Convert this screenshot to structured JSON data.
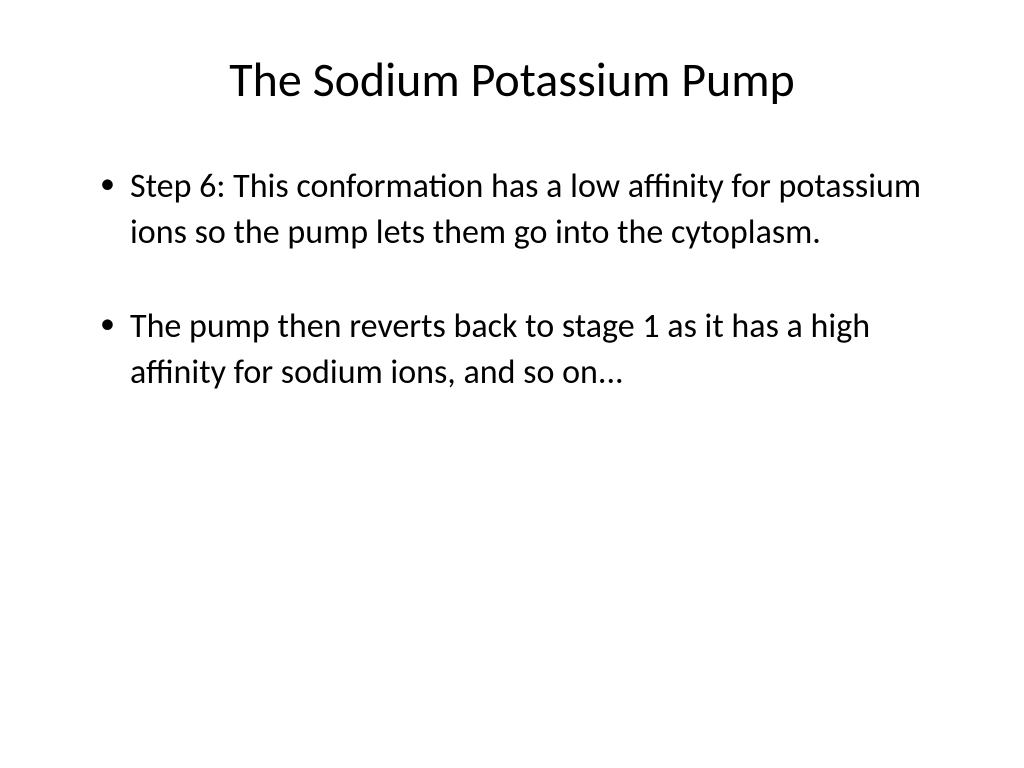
{
  "slide": {
    "title": "The Sodium Potassium Pump",
    "bullets": [
      "Step 6: This conformation has a low affinity for potassium ions so the pump lets them go into the cytoplasm.",
      "The pump then reverts back to stage 1 as it has a high affinity for sodium ions, and so on..."
    ]
  },
  "styling": {
    "background_color": "#ffffff",
    "text_color": "#000000",
    "title_fontsize": 48,
    "title_fontweight": 400,
    "body_fontsize": 34,
    "font_family": "Calibri",
    "slide_width": 1024,
    "slide_height": 768,
    "bullet_char": "•",
    "line_height": 1.35
  }
}
